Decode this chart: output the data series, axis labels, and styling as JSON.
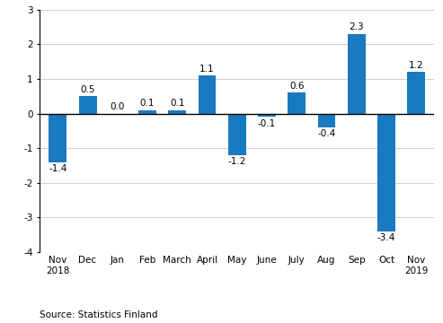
{
  "categories": [
    "Nov\n2018",
    "Dec",
    "Jan",
    "Feb",
    "March",
    "April",
    "May",
    "June",
    "July",
    "Aug",
    "Sep",
    "Oct",
    "Nov\n2019"
  ],
  "values": [
    -1.4,
    0.5,
    0.0,
    0.1,
    0.1,
    1.1,
    -1.2,
    -0.1,
    0.6,
    -0.4,
    2.3,
    -3.4,
    1.2
  ],
  "bar_color": "#1a7abf",
  "ylim": [
    -4,
    3
  ],
  "yticks": [
    -4,
    -3,
    -2,
    -1,
    0,
    1,
    2,
    3
  ],
  "source_text": "Source: Statistics Finland",
  "label_fontsize": 7.5,
  "tick_fontsize": 7.5,
  "source_fontsize": 7.5,
  "bar_width": 0.6,
  "background_color": "#ffffff",
  "grid_color": "#d0d0d0"
}
